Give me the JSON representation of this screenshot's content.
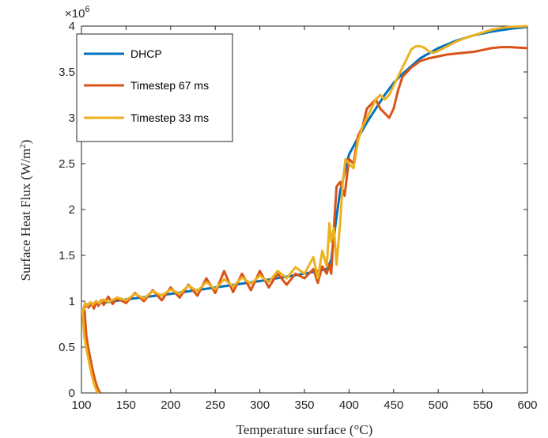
{
  "chart_data": {
    "type": "line",
    "xlabel": "Temperature surface (°C)",
    "ylabel": "Surface Heat Flux (W/m²)",
    "ylabel_main": "Surface Heat Flux (W/m",
    "ylabel_sup": "2",
    "ylabel_end": ")",
    "xlim": [
      100,
      600
    ],
    "ylim": [
      0,
      4000000
    ],
    "xticks": [
      "100",
      "150",
      "200",
      "250",
      "300",
      "350",
      "400",
      "450",
      "500",
      "550",
      "600"
    ],
    "yticks": [
      "0",
      "0.5",
      "1",
      "1.5",
      "2",
      "2.5",
      "3",
      "3.5",
      "4"
    ],
    "y_exponent": "×10",
    "y_exponent_power": "6",
    "grid": false,
    "legend_position": "top-left",
    "series": [
      {
        "name": "DHCP",
        "color": "#0072BD",
        "x": [
          102,
          104,
          110,
          130,
          150,
          200,
          250,
          300,
          350,
          375,
          380,
          385,
          390,
          395,
          400,
          410,
          420,
          430,
          440,
          450,
          460,
          480,
          500,
          520,
          540,
          560,
          580,
          600
        ],
        "y": [
          900000,
          960000,
          970000,
          990000,
          1020000,
          1080000,
          1150000,
          1220000,
          1300000,
          1350000,
          1450000,
          1850000,
          2200000,
          2400000,
          2600000,
          2780000,
          2950000,
          3100000,
          3250000,
          3380000,
          3480000,
          3650000,
          3760000,
          3840000,
          3900000,
          3940000,
          3970000,
          3990000
        ]
      },
      {
        "name": "Timestep 67 ms",
        "color": "#D95319",
        "x": [
          102,
          105,
          108,
          111,
          114,
          117,
          119,
          122,
          125,
          130,
          135,
          140,
          150,
          160,
          170,
          180,
          190,
          200,
          210,
          220,
          230,
          240,
          250,
          260,
          270,
          280,
          290,
          300,
          310,
          320,
          330,
          340,
          350,
          360,
          365,
          370,
          375,
          378,
          380,
          383,
          386,
          390,
          395,
          400,
          405,
          410,
          415,
          420,
          425,
          430,
          435,
          440,
          445,
          450,
          455,
          460,
          470,
          480,
          490,
          500,
          510,
          520,
          530,
          540,
          550,
          560,
          570,
          580,
          590,
          600
        ],
        "y": [
          900000,
          960000,
          930000,
          980000,
          920000,
          1000000,
          950000,
          1010000,
          960000,
          1050000,
          970000,
          1030000,
          980000,
          1090000,
          1000000,
          1120000,
          1010000,
          1150000,
          1040000,
          1180000,
          1060000,
          1250000,
          1090000,
          1330000,
          1100000,
          1300000,
          1120000,
          1330000,
          1150000,
          1300000,
          1180000,
          1300000,
          1250000,
          1350000,
          1200000,
          1380000,
          1300000,
          1400000,
          1300000,
          1800000,
          2250000,
          2300000,
          2150000,
          2550000,
          2500000,
          2800000,
          2900000,
          3100000,
          3150000,
          3200000,
          3100000,
          3050000,
          3000000,
          3100000,
          3300000,
          3450000,
          3550000,
          3620000,
          3650000,
          3670000,
          3690000,
          3700000,
          3710000,
          3720000,
          3740000,
          3760000,
          3770000,
          3770000,
          3765000,
          3760000
        ]
      },
      {
        "name": "Timestep 33 ms",
        "color": "#EDB120",
        "x": [
          102,
          104,
          107,
          110,
          113,
          116,
          120,
          125,
          130,
          140,
          150,
          160,
          170,
          180,
          190,
          200,
          210,
          220,
          230,
          240,
          250,
          260,
          270,
          280,
          290,
          300,
          310,
          320,
          330,
          340,
          350,
          360,
          365,
          370,
          375,
          378,
          380,
          383,
          386,
          390,
          393,
          396,
          400,
          405,
          410,
          415,
          420,
          425,
          430,
          435,
          440,
          445,
          450,
          460,
          470,
          475,
          480,
          485,
          490,
          495,
          500,
          510,
          520,
          530,
          540,
          550,
          560,
          570,
          580,
          590,
          600
        ],
        "y": [
          900000,
          980000,
          950000,
          990000,
          960000,
          1000000,
          980000,
          1020000,
          990000,
          1040000,
          1010000,
          1080000,
          1030000,
          1110000,
          1060000,
          1130000,
          1080000,
          1170000,
          1110000,
          1210000,
          1130000,
          1240000,
          1160000,
          1260000,
          1190000,
          1280000,
          1210000,
          1330000,
          1250000,
          1370000,
          1300000,
          1480000,
          1250000,
          1550000,
          1380000,
          1850000,
          1650000,
          1800000,
          1400000,
          1850000,
          2300000,
          2550000,
          2500000,
          2450000,
          2750000,
          2900000,
          3000000,
          3100000,
          3200000,
          3250000,
          3200000,
          3250000,
          3350000,
          3550000,
          3750000,
          3780000,
          3780000,
          3760000,
          3720000,
          3710000,
          3730000,
          3780000,
          3830000,
          3870000,
          3900000,
          3930000,
          3960000,
          3980000,
          3990000,
          3995000,
          4000000
        ]
      }
    ],
    "cooling_start": {
      "note": "initial steep drop from 0 to ~1e6 near x=102..120",
      "x": [
        102,
        103,
        104,
        106,
        108,
        110,
        112,
        114,
        116,
        118,
        120
      ],
      "y": [
        900000,
        750000,
        620000,
        500000,
        400000,
        300000,
        210000,
        130000,
        70000,
        20000,
        0
      ]
    }
  }
}
